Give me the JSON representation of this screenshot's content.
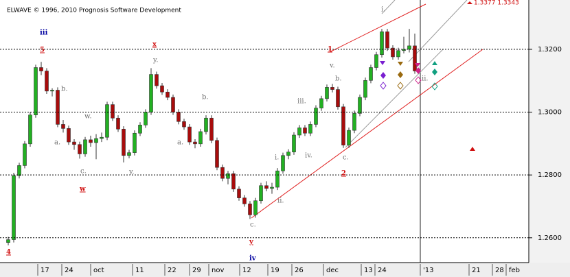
{
  "header": "ELWAVE © 1996, 2010 Prognosis Software Development",
  "chart_data": {
    "type": "candlestick",
    "up_color": "#22b022",
    "down_color": "#a80c0c",
    "ylim": [
      1.2521,
      1.3357
    ],
    "yticks": [
      {
        "value": 1.32,
        "label": "1.3200"
      },
      {
        "value": 1.3,
        "label": "1.3000"
      },
      {
        "value": 1.28,
        "label": "1.2800"
      },
      {
        "value": 1.26,
        "label": "1.2600"
      }
    ],
    "grid": true,
    "x_labels": [
      "17",
      "24",
      "oct",
      "11",
      "22",
      "29",
      "nov",
      "12",
      "19",
      "26",
      "dec",
      "13",
      "24",
      "'13",
      "21",
      "28",
      "feb"
    ],
    "corner_text": "1.3377 1.3343",
    "annotations": [
      {
        "text": "iii",
        "color": "#0000a0"
      },
      {
        "text": "5",
        "color": "#d01010"
      },
      {
        "text": "4",
        "color": "#d01010"
      },
      {
        "text": "x",
        "color": "#d01010"
      },
      {
        "text": "y.",
        "color": "#707070"
      },
      {
        "text": "b.",
        "color": "#707070"
      },
      {
        "text": "w.",
        "color": "#707070"
      },
      {
        "text": "a.",
        "color": "#707070"
      },
      {
        "text": "c.",
        "color": "#707070"
      },
      {
        "text": "w",
        "color": "#d01010"
      },
      {
        "text": "y.",
        "color": "#707070"
      },
      {
        "text": "a.",
        "color": "#707070"
      },
      {
        "text": "b.",
        "color": "#707070"
      },
      {
        "text": "y",
        "color": "#d01010"
      },
      {
        "text": "iv",
        "color": "#0000a0"
      },
      {
        "text": "c.",
        "color": "#707070"
      },
      {
        "text": "i.",
        "color": "#707070"
      },
      {
        "text": "ii.",
        "color": "#707070"
      },
      {
        "text": "iii.",
        "color": "#707070"
      },
      {
        "text": "iv.",
        "color": "#707070"
      },
      {
        "text": "v.",
        "color": "#707070"
      },
      {
        "text": "b.",
        "color": "#707070"
      },
      {
        "text": "c.",
        "color": "#707070"
      },
      {
        "text": "1",
        "color": "#d01010"
      },
      {
        "text": "2",
        "color": "#d01010"
      },
      {
        "text": "i.",
        "color": "#707070"
      },
      {
        "text": "ii.",
        "color": "#707070"
      }
    ],
    "ohlc": [
      [
        1.2585,
        1.2603,
        1.2576,
        1.2594
      ],
      [
        1.2594,
        1.2807,
        1.2585,
        1.2798
      ],
      [
        1.2798,
        1.2839,
        1.2789,
        1.283
      ],
      [
        1.283,
        1.2908,
        1.2821,
        1.2899
      ],
      [
        1.2899,
        1.3,
        1.289,
        1.2991
      ],
      [
        1.2991,
        1.3151,
        1.2982,
        1.3142
      ],
      [
        1.3142,
        1.316,
        1.3118,
        1.3131
      ],
      [
        1.3131,
        1.314,
        1.3058,
        1.3067
      ],
      [
        1.3067,
        1.3076,
        1.305,
        1.307
      ],
      [
        1.307,
        1.3079,
        1.2952,
        1.2961
      ],
      [
        1.2961,
        1.2975,
        1.2935,
        1.2948
      ],
      [
        1.2948,
        1.2957,
        1.2896,
        1.2905
      ],
      [
        1.2905,
        1.2914,
        1.288,
        1.2897
      ],
      [
        1.2897,
        1.2906,
        1.2852,
        1.2867
      ],
      [
        1.2867,
        1.2921,
        1.2858,
        1.2912
      ],
      [
        1.2912,
        1.2925,
        1.289,
        1.2903
      ],
      [
        1.2903,
        1.293,
        1.285,
        1.2916
      ],
      [
        1.2916,
        1.2935,
        1.2905,
        1.292
      ],
      [
        1.292,
        1.3033,
        1.2911,
        1.3024
      ],
      [
        1.3024,
        1.3033,
        1.2972,
        1.2981
      ],
      [
        1.2981,
        1.299,
        1.2937,
        1.2946
      ],
      [
        1.2946,
        1.2955,
        1.284,
        1.2862
      ],
      [
        1.2862,
        1.288,
        1.2853,
        1.2871
      ],
      [
        1.2871,
        1.2942,
        1.2862,
        1.2933
      ],
      [
        1.2933,
        1.2968,
        1.2924,
        1.2959
      ],
      [
        1.2959,
        1.3009,
        1.295,
        1.3
      ],
      [
        1.3,
        1.314,
        1.2991,
        1.312
      ],
      [
        1.312,
        1.3129,
        1.3075,
        1.3084
      ],
      [
        1.3084,
        1.3093,
        1.3055,
        1.3064
      ],
      [
        1.3064,
        1.3073,
        1.3038,
        1.3047
      ],
      [
        1.3047,
        1.3056,
        1.2991,
        1.3
      ],
      [
        1.3,
        1.3009,
        1.2961,
        1.297
      ],
      [
        1.297,
        1.2979,
        1.2944,
        1.2953
      ],
      [
        1.2953,
        1.2962,
        1.2896,
        1.2905
      ],
      [
        1.2905,
        1.2914,
        1.2885,
        1.2899
      ],
      [
        1.2899,
        1.2947,
        1.289,
        1.2938
      ],
      [
        1.2938,
        1.299,
        1.2929,
        1.2981
      ],
      [
        1.2981,
        1.299,
        1.2901,
        1.291
      ],
      [
        1.291,
        1.2919,
        1.2815,
        1.2824
      ],
      [
        1.2824,
        1.2833,
        1.278,
        1.2789
      ],
      [
        1.2789,
        1.2813,
        1.277,
        1.2804
      ],
      [
        1.2804,
        1.2813,
        1.2746,
        1.2755
      ],
      [
        1.2755,
        1.2764,
        1.2718,
        1.2727
      ],
      [
        1.2727,
        1.2736,
        1.2699,
        1.2708
      ],
      [
        1.2708,
        1.2717,
        1.266,
        1.2673
      ],
      [
        1.2673,
        1.2727,
        1.2664,
        1.2718
      ],
      [
        1.2718,
        1.2775,
        1.2709,
        1.2766
      ],
      [
        1.2766,
        1.278,
        1.2748,
        1.2757
      ],
      [
        1.2757,
        1.2775,
        1.274,
        1.2761
      ],
      [
        1.2761,
        1.2822,
        1.2752,
        1.2813
      ],
      [
        1.2813,
        1.2871,
        1.2804,
        1.2862
      ],
      [
        1.2862,
        1.2882,
        1.285,
        1.2873
      ],
      [
        1.2873,
        1.2936,
        1.2864,
        1.2927
      ],
      [
        1.2927,
        1.2959,
        1.2918,
        1.295
      ],
      [
        1.295,
        1.2959,
        1.2924,
        1.2933
      ],
      [
        1.2933,
        1.297,
        1.2924,
        1.2961
      ],
      [
        1.2961,
        1.3022,
        1.2952,
        1.3013
      ],
      [
        1.3013,
        1.3052,
        1.3004,
        1.3043
      ],
      [
        1.3043,
        1.3088,
        1.3034,
        1.3079
      ],
      [
        1.3079,
        1.309,
        1.3063,
        1.3072
      ],
      [
        1.3072,
        1.3081,
        1.3008,
        1.3017
      ],
      [
        1.3017,
        1.3026,
        1.2886,
        1.2895
      ],
      [
        1.2895,
        1.2951,
        1.2886,
        1.2942
      ],
      [
        1.2942,
        1.3005,
        1.2933,
        1.2996
      ],
      [
        1.2996,
        1.3056,
        1.2987,
        1.3047
      ],
      [
        1.3047,
        1.311,
        1.3038,
        1.3101
      ],
      [
        1.3101,
        1.3151,
        1.3092,
        1.3142
      ],
      [
        1.3142,
        1.3192,
        1.3133,
        1.3183
      ],
      [
        1.3183,
        1.3265,
        1.3174,
        1.3256
      ],
      [
        1.3256,
        1.3265,
        1.3195,
        1.3204
      ],
      [
        1.3204,
        1.3213,
        1.3167,
        1.3176
      ],
      [
        1.3176,
        1.3205,
        1.3167,
        1.3196
      ],
      [
        1.3196,
        1.324,
        1.3187,
        1.32
      ],
      [
        1.32,
        1.3265,
        1.319,
        1.3211
      ],
      [
        1.3211,
        1.325,
        1.3122,
        1.3131
      ]
    ]
  }
}
